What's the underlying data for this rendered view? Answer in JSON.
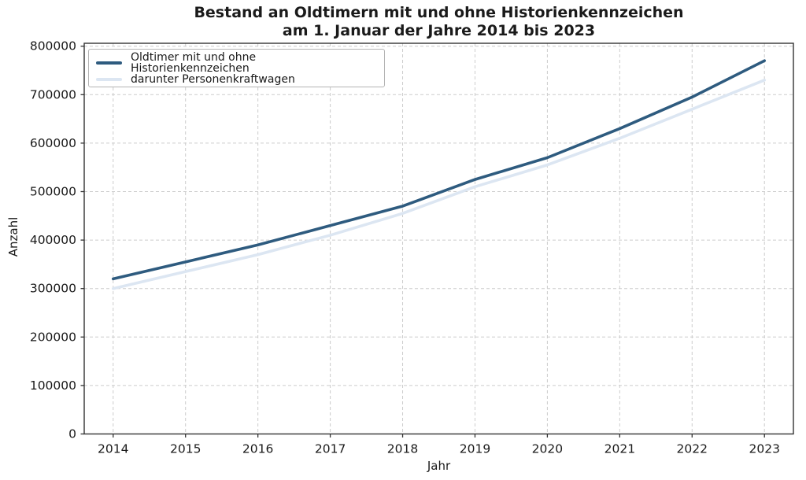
{
  "figure": {
    "title_line1": "Bestand an Oldtimern mit und ohne Historienkennzeichen",
    "title_line2": "am 1. Januar der Jahre 2014 bis 2023"
  },
  "chart_data": {
    "type": "line",
    "title": "Bestand an Oldtimern mit und ohne Historienkennzeichen am 1. Januar der Jahre 2014 bis 2023",
    "xlabel": "Jahr",
    "ylabel": "Anzahl",
    "x": [
      2014,
      2015,
      2016,
      2017,
      2018,
      2019,
      2020,
      2021,
      2022,
      2023
    ],
    "series": [
      {
        "name": "Oldtimer mit und ohne Historienkennzeichen",
        "color": "#2e5b7f",
        "line_width": 3.6,
        "values": [
          320000,
          355000,
          390000,
          430000,
          470000,
          525000,
          570000,
          630000,
          695000,
          770000
        ]
      },
      {
        "name": "darunter Personenkraftwagen",
        "color": "#dce6f2",
        "line_width": 3.6,
        "values": [
          300000,
          335000,
          370000,
          410000,
          455000,
          510000,
          555000,
          610000,
          670000,
          730000
        ]
      }
    ],
    "xticks": [
      2014,
      2015,
      2016,
      2017,
      2018,
      2019,
      2020,
      2021,
      2022,
      2023
    ],
    "yticks": [
      0,
      100000,
      200000,
      300000,
      400000,
      500000,
      600000,
      700000,
      800000
    ],
    "xlim": [
      2013.6,
      2023.4
    ],
    "ylim": [
      0,
      806000
    ],
    "grid": true,
    "grid_style": "dashed",
    "legend_position": "upper left",
    "colors": {
      "grid": "#cccccc",
      "spine": "#333333",
      "text": "#1a1a1a",
      "background": "#ffffff"
    }
  }
}
